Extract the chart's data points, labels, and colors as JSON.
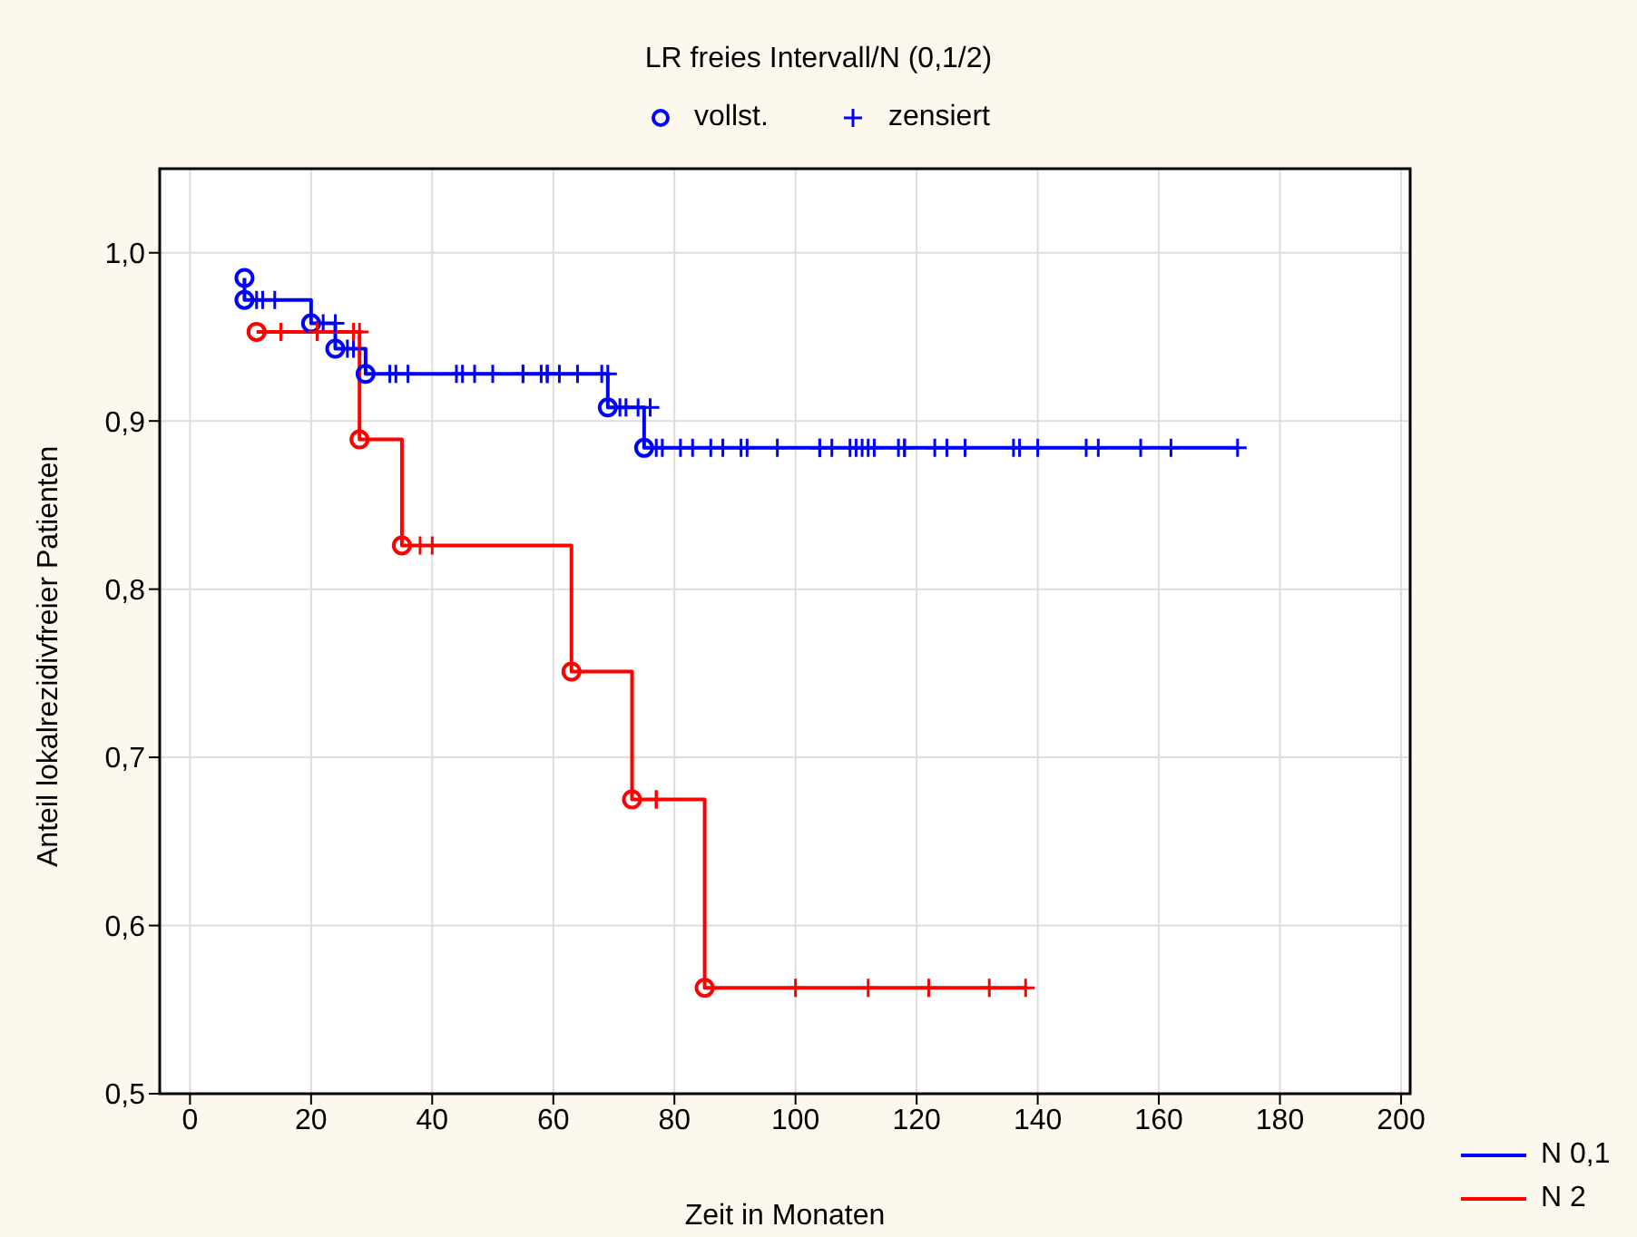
{
  "chart_data": {
    "type": "step",
    "title": "LR freies Intervall/N (0,1/2)",
    "xlabel": "Zeit in Monaten",
    "ylabel": "Anteil lokalrezidivfreier Patienten",
    "xlim": [
      -5,
      201.5
    ],
    "xticks": [
      0,
      20,
      40,
      60,
      80,
      100,
      120,
      140,
      160,
      180,
      200
    ],
    "ylim": [
      0.5,
      1.05
    ],
    "yticks": [
      {
        "value": 0.5,
        "label": "0,5"
      },
      {
        "value": 0.6,
        "label": "0,6"
      },
      {
        "value": 0.7,
        "label": "0,7"
      },
      {
        "value": 0.8,
        "label": "0,8"
      },
      {
        "value": 0.9,
        "label": "0,9"
      },
      {
        "value": 1.0,
        "label": "1,0"
      }
    ],
    "grid": true,
    "legend": "bottom right",
    "line_style": "solid",
    "series": [
      {
        "name": "N 0,1",
        "color": "#0000ff",
        "marker": "none",
        "x": [
          9,
          9,
          20,
          24,
          29,
          69,
          75,
          173
        ],
        "values": [
          0.985,
          0.972,
          0.958,
          0.943,
          0.928,
          0.908,
          0.884,
          0.884
        ]
      },
      {
        "name": "N 2",
        "color": "#ff0000",
        "marker": "none",
        "x": [
          11,
          28,
          35,
          63,
          73,
          85,
          138
        ],
        "values": [
          0.953,
          0.889,
          0.826,
          0.751,
          0.675,
          0.563,
          0.563
        ]
      },
      {
        "name": "vollst.",
        "type": "scatter",
        "color": "#0000ff",
        "marker": "circle",
        "x": [
          9,
          9,
          20,
          24,
          29,
          69,
          75,
          11,
          28,
          35,
          63,
          73,
          85
        ],
        "values": [
          0.985,
          0.972,
          0.958,
          0.943,
          0.928,
          0.908,
          0.884,
          0.953,
          0.889,
          0.826,
          0.751,
          0.675,
          0.563
        ],
        "colors": [
          "#0000ff",
          "#0000ff",
          "#0000ff",
          "#0000ff",
          "#0000ff",
          "#0000ff",
          "#0000ff",
          "#ff0000",
          "#ff0000",
          "#ff0000",
          "#ff0000",
          "#ff0000",
          "#ff0000"
        ]
      },
      {
        "name": "zensiert",
        "type": "scatter",
        "color": "#0000ff",
        "marker": "cross",
        "x": [
          11,
          12,
          14,
          22,
          24,
          26,
          27,
          33,
          34,
          36,
          44,
          45,
          47,
          50,
          55,
          55,
          58,
          59,
          59,
          61,
          64,
          68,
          69,
          71,
          72,
          74,
          76,
          77,
          78,
          81,
          83,
          86,
          88,
          91,
          92,
          97,
          104,
          104,
          106,
          109,
          110,
          111,
          112,
          113,
          117,
          118,
          118,
          123,
          125,
          128,
          136,
          137,
          140,
          148,
          150,
          157,
          162,
          173,
          15,
          21,
          27,
          28,
          38,
          40,
          77,
          77,
          100,
          112,
          122,
          132,
          138
        ],
        "values": [
          0.972,
          0.972,
          0.972,
          0.958,
          0.958,
          0.943,
          0.943,
          0.928,
          0.928,
          0.928,
          0.928,
          0.928,
          0.928,
          0.928,
          0.928,
          0.928,
          0.928,
          0.928,
          0.928,
          0.928,
          0.928,
          0.928,
          0.928,
          0.908,
          0.908,
          0.908,
          0.908,
          0.884,
          0.884,
          0.884,
          0.884,
          0.884,
          0.884,
          0.884,
          0.884,
          0.884,
          0.884,
          0.884,
          0.884,
          0.884,
          0.884,
          0.884,
          0.884,
          0.884,
          0.884,
          0.884,
          0.884,
          0.884,
          0.884,
          0.884,
          0.884,
          0.884,
          0.884,
          0.884,
          0.884,
          0.884,
          0.884,
          0.884,
          0.953,
          0.953,
          0.953,
          0.953,
          0.826,
          0.826,
          0.675,
          0.675,
          0.563,
          0.563,
          0.563,
          0.563,
          0.563
        ],
        "colors": [
          "#0000ff",
          "#0000ff",
          "#0000ff",
          "#0000ff",
          "#0000ff",
          "#0000ff",
          "#0000ff",
          "#0000ff",
          "#0000ff",
          "#0000ff",
          "#0000ff",
          "#0000ff",
          "#0000ff",
          "#0000ff",
          "#0000ff",
          "#0000ff",
          "#0000ff",
          "#0000ff",
          "#0000ff",
          "#0000ff",
          "#0000ff",
          "#0000ff",
          "#0000ff",
          "#0000ff",
          "#0000ff",
          "#0000ff",
          "#0000ff",
          "#0000ff",
          "#0000ff",
          "#0000ff",
          "#0000ff",
          "#0000ff",
          "#0000ff",
          "#0000ff",
          "#0000ff",
          "#0000ff",
          "#0000ff",
          "#0000ff",
          "#0000ff",
          "#0000ff",
          "#0000ff",
          "#0000ff",
          "#0000ff",
          "#0000ff",
          "#0000ff",
          "#0000ff",
          "#0000ff",
          "#0000ff",
          "#0000ff",
          "#0000ff",
          "#0000ff",
          "#0000ff",
          "#0000ff",
          "#0000ff",
          "#0000ff",
          "#0000ff",
          "#0000ff",
          "#0000ff",
          "#ff0000",
          "#ff0000",
          "#ff0000",
          "#ff0000",
          "#ff0000",
          "#ff0000",
          "#ff0000",
          "#ff0000",
          "#ff0000",
          "#ff0000",
          "#ff0000",
          "#ff0000",
          "#ff0000"
        ]
      }
    ]
  }
}
